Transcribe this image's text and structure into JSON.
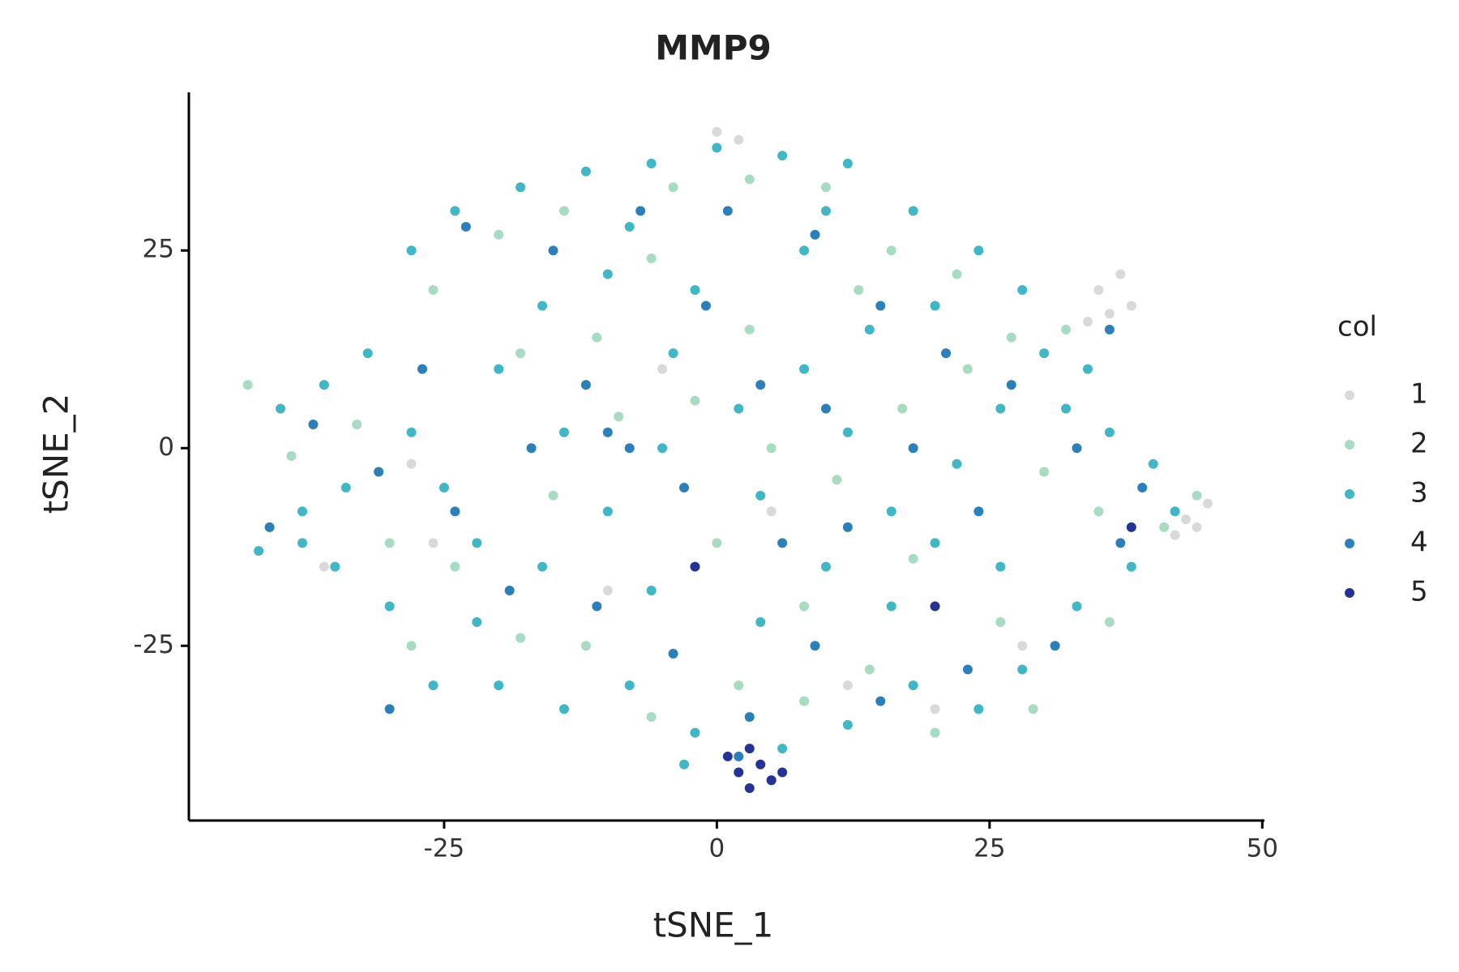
{
  "chart_data": {
    "type": "scatter",
    "title": "MMP9",
    "x_label": "tSNE_1",
    "y_label": "tSNE_2",
    "legend_title": "col",
    "legend": "right",
    "xlim": [
      -48.4,
      50.2
    ],
    "ylim": [
      -47.1,
      45
    ],
    "xticks": [
      -25,
      0,
      25,
      50
    ],
    "yticks": [
      -25,
      0,
      25
    ],
    "series": [
      {
        "name": "1",
        "color": "#d9d9d9",
        "x": [
          35,
          37,
          38,
          36,
          34,
          43,
          45,
          42,
          44,
          -36,
          -26,
          -10,
          5,
          12,
          20,
          28,
          -5,
          0,
          2,
          -28
        ],
        "values": [
          20,
          22,
          18,
          17,
          16,
          -9,
          -7,
          -11,
          -10,
          -15,
          -12,
          -18,
          -8,
          -30,
          -33,
          -25,
          10,
          40,
          39,
          -2
        ]
      },
      {
        "name": "2",
        "color": "#a8dcc2",
        "x": [
          -43,
          -39,
          -33,
          -30,
          -26,
          -20,
          -14,
          -4,
          3,
          10,
          16,
          22,
          27,
          30,
          35,
          41,
          44,
          36,
          29,
          20,
          14,
          8,
          2,
          -6,
          -12,
          -18,
          -24,
          -15,
          -9,
          -2,
          5,
          11,
          17,
          23,
          13,
          -6,
          -18,
          -11,
          0,
          8,
          18,
          26,
          -28,
          3,
          32
        ],
        "values": [
          8,
          -1,
          3,
          -12,
          20,
          27,
          30,
          33,
          34,
          33,
          25,
          22,
          14,
          -3,
          -8,
          -10,
          -6,
          -22,
          -33,
          -36,
          -28,
          -32,
          -30,
          -34,
          -25,
          -24,
          -15,
          -6,
          4,
          6,
          0,
          -4,
          5,
          10,
          20,
          24,
          12,
          14,
          -12,
          -20,
          -14,
          -22,
          -25,
          15,
          15
        ]
      },
      {
        "name": "3",
        "color": "#41b6c4",
        "x": [
          -42,
          -38,
          -35,
          -40,
          -36,
          -32,
          -28,
          -25,
          -30,
          -22,
          -28,
          -24,
          -18,
          -12,
          -6,
          0,
          6,
          12,
          18,
          24,
          28,
          30,
          26,
          32,
          36,
          40,
          42,
          38,
          33,
          28,
          24,
          18,
          12,
          6,
          -2,
          -8,
          -14,
          -20,
          -22,
          -16,
          -10,
          -5,
          2,
          8,
          14,
          20,
          -2,
          -10,
          -16,
          -20,
          -14,
          -6,
          4,
          10,
          16,
          22,
          12,
          4,
          -4,
          8,
          -8,
          16,
          20,
          26,
          -26,
          -3,
          34,
          -34,
          -38,
          10
        ],
        "values": [
          -13,
          -8,
          -15,
          5,
          8,
          12,
          2,
          -5,
          -20,
          -12,
          25,
          30,
          33,
          35,
          36,
          38,
          37,
          36,
          30,
          25,
          20,
          12,
          5,
          5,
          2,
          -2,
          -8,
          -15,
          -20,
          -28,
          -33,
          -30,
          -35,
          -38,
          -36,
          -30,
          -33,
          -30,
          -22,
          -15,
          -8,
          0,
          5,
          10,
          15,
          18,
          20,
          22,
          18,
          10,
          2,
          -18,
          -22,
          -15,
          -8,
          -2,
          2,
          -6,
          12,
          25,
          28,
          -20,
          -12,
          -15,
          -30,
          -40,
          10,
          -5,
          -12,
          30
        ]
      },
      {
        "name": "4",
        "color": "#2c7fb8",
        "x": [
          -41,
          -37,
          -31,
          -27,
          -23,
          -15,
          -7,
          1,
          9,
          15,
          21,
          27,
          33,
          39,
          37,
          31,
          23,
          15,
          9,
          3,
          -4,
          -11,
          -19,
          -24,
          -17,
          -10,
          -8,
          -3,
          4,
          10,
          18,
          24,
          12,
          -1,
          -12,
          6,
          2,
          5,
          -30,
          36
        ],
        "values": [
          -10,
          3,
          -3,
          10,
          28,
          25,
          30,
          30,
          27,
          18,
          12,
          8,
          0,
          -5,
          -12,
          -25,
          -28,
          -32,
          -25,
          -34,
          -26,
          -20,
          -18,
          -8,
          0,
          2,
          0,
          -5,
          8,
          5,
          0,
          -8,
          -10,
          18,
          8,
          -12,
          -39,
          -42,
          -33,
          15
        ]
      },
      {
        "name": "5",
        "color": "#253494",
        "x": [
          2,
          3,
          4,
          5,
          1,
          3,
          6,
          38,
          -2,
          20
        ],
        "values": [
          -41,
          -43,
          -40,
          -42,
          -39,
          -38,
          -41,
          -10,
          -15,
          -20
        ]
      }
    ]
  }
}
